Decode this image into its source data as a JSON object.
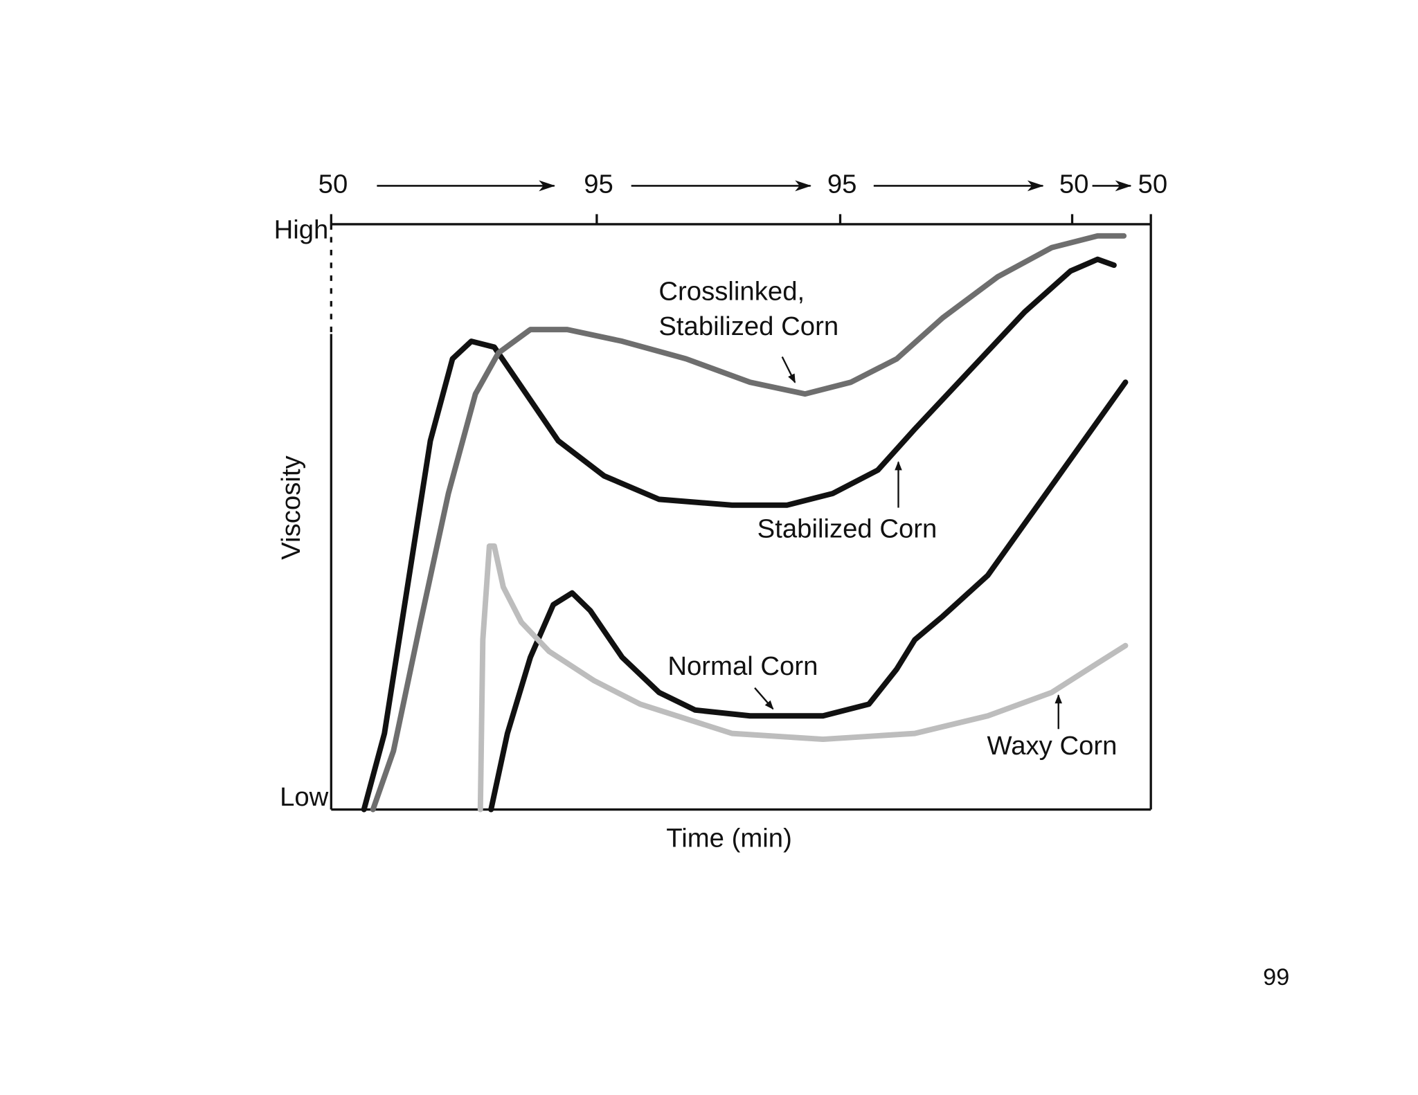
{
  "chart_data": {
    "type": "line",
    "xlabel": "Time (min)",
    "ylabel": "Viscosity",
    "xlim": [
      0,
      100
    ],
    "ylim": [
      0,
      1
    ],
    "yticks": [
      {
        "value": 0,
        "label": "Low"
      },
      {
        "value": 1,
        "label": "High"
      }
    ],
    "top_xticks": [
      {
        "value": 0,
        "label": "50"
      },
      {
        "value": 32.4,
        "label": "95"
      },
      {
        "value": 62.1,
        "label": "95"
      },
      {
        "value": 90.4,
        "label": "50"
      },
      {
        "value": 100,
        "label": "50"
      }
    ],
    "series": [
      {
        "name": "Stabilized Corn",
        "color": "#111111",
        "x": [
          4.0,
          6.5,
          9.3,
          12.1,
          14.8,
          17.1,
          19.9,
          23.8,
          27.7,
          33.3,
          40.0,
          48.9,
          55.6,
          61.2,
          66.7,
          71.2,
          77.9,
          84.6,
          90.2,
          93.5,
          95.5
        ],
        "values": [
          0,
          0.13,
          0.38,
          0.63,
          0.77,
          0.8,
          0.79,
          0.71,
          0.63,
          0.57,
          0.53,
          0.52,
          0.52,
          0.54,
          0.58,
          0.65,
          0.75,
          0.85,
          0.92,
          0.94,
          0.93
        ]
      },
      {
        "name": "Crosslinked, Stabilized Corn",
        "color": "#6e6e6e",
        "x": [
          5.1,
          7.6,
          10.9,
          14.3,
          17.6,
          20.4,
          24.3,
          28.8,
          35.5,
          43.3,
          51.1,
          57.8,
          63.4,
          69.0,
          74.6,
          81.3,
          87.9,
          93.5,
          96.7
        ],
        "values": [
          0,
          0.1,
          0.32,
          0.54,
          0.71,
          0.78,
          0.82,
          0.82,
          0.8,
          0.77,
          0.73,
          0.71,
          0.73,
          0.77,
          0.84,
          0.91,
          0.96,
          0.98,
          0.98
        ]
      },
      {
        "name": "Normal Corn",
        "color": "#111111",
        "x": [
          19.5,
          21.5,
          24.3,
          27.1,
          29.4,
          31.6,
          35.5,
          40.0,
          44.4,
          51.1,
          60.0,
          65.6,
          69.0,
          71.2,
          74.6,
          80.1,
          85.7,
          91.3,
          96.9
        ],
        "values": [
          0,
          0.13,
          0.26,
          0.35,
          0.37,
          0.34,
          0.26,
          0.2,
          0.17,
          0.16,
          0.16,
          0.18,
          0.24,
          0.29,
          0.33,
          0.4,
          0.51,
          0.62,
          0.73
        ]
      },
      {
        "name": "Waxy Corn",
        "color": "#bdbdbd",
        "x": [
          18.2,
          18.5,
          19.3,
          19.9,
          21.0,
          23.2,
          26.6,
          32.1,
          37.7,
          48.9,
          60.0,
          71.2,
          80.1,
          87.9,
          93.5,
          96.9
        ],
        "values": [
          0,
          0.29,
          0.45,
          0.45,
          0.38,
          0.32,
          0.27,
          0.22,
          0.18,
          0.13,
          0.12,
          0.13,
          0.16,
          0.2,
          0.25,
          0.28
        ]
      }
    ]
  },
  "page_number": "99"
}
